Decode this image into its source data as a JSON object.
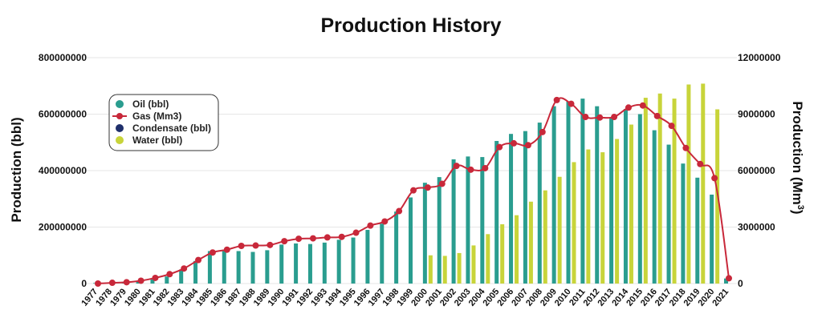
{
  "chart_data": {
    "type": "bar",
    "title": "Production History",
    "ylabel_left": "Production (bbl)",
    "ylabel_right_main": "Production (Mm",
    "ylabel_right_sup": "3",
    "ylabel_right_close": ")",
    "ylim_left": [
      0,
      800000000
    ],
    "ylim_right": [
      0,
      12000000
    ],
    "yticks_left": [
      "0",
      "200000000",
      "400000000",
      "600000000",
      "800000000"
    ],
    "yticks_right": [
      "0",
      "3000000",
      "6000000",
      "9000000",
      "12000000"
    ],
    "grid": true,
    "legend_position": "left",
    "categories": [
      "1977",
      "1978",
      "1979",
      "1980",
      "1981",
      "1982",
      "1983",
      "1984",
      "1985",
      "1986",
      "1987",
      "1988",
      "1989",
      "1990",
      "1991",
      "1992",
      "1993",
      "1994",
      "1995",
      "1996",
      "1997",
      "1998",
      "1999",
      "2000",
      "2001",
      "2002",
      "2003",
      "2004",
      "2005",
      "2006",
      "2007",
      "2008",
      "2009",
      "2010",
      "2011",
      "2012",
      "2013",
      "2014",
      "2015",
      "2016",
      "2017",
      "2018",
      "2019",
      "2020",
      "2021"
    ],
    "series": [
      {
        "name": "Oil (bbl)",
        "type": "bar",
        "axis": "left",
        "color": "#2a9d8f",
        "values": [
          2000000,
          4000000,
          6000000,
          10000000,
          15000000,
          25000000,
          50000000,
          80000000,
          115000000,
          120000000,
          115000000,
          112000000,
          118000000,
          138000000,
          142000000,
          140000000,
          145000000,
          155000000,
          163000000,
          190000000,
          212000000,
          255000000,
          305000000,
          357000000,
          377000000,
          440000000,
          450000000,
          448000000,
          505000000,
          530000000,
          540000000,
          570000000,
          628000000,
          645000000,
          655000000,
          628000000,
          590000000,
          618000000,
          600000000,
          543000000,
          492000000,
          425000000,
          375000000,
          315000000,
          18000000
        ]
      },
      {
        "name": "Gas (Mm3)",
        "type": "line",
        "axis": "right",
        "color": "#c8283a",
        "values": [
          0,
          40000,
          70000,
          150000,
          300000,
          500000,
          800000,
          1250000,
          1650000,
          1800000,
          2000000,
          2020000,
          2050000,
          2250000,
          2380000,
          2400000,
          2450000,
          2480000,
          2700000,
          3080000,
          3300000,
          3850000,
          4950000,
          5100000,
          5300000,
          6250000,
          6050000,
          6130000,
          7250000,
          7450000,
          7350000,
          8050000,
          9750000,
          9550000,
          8850000,
          8820000,
          8850000,
          9350000,
          9460000,
          8900000,
          8380000,
          7200000,
          6350000,
          5600000,
          280000
        ]
      },
      {
        "name": "Condensate (bbl)",
        "type": "bar",
        "axis": "left",
        "color": "#1f2f6b",
        "values": [
          0,
          0,
          0,
          0,
          0,
          0,
          0,
          0,
          0,
          0,
          0,
          0,
          0,
          0,
          0,
          0,
          0,
          0,
          0,
          0,
          0,
          0,
          0,
          0,
          0,
          0,
          0,
          0,
          0,
          0,
          0,
          0,
          0,
          0,
          0,
          0,
          0,
          0,
          0,
          0,
          0,
          0,
          0,
          0,
          0
        ]
      },
      {
        "name": "Water (bbl)",
        "type": "bar",
        "axis": "left",
        "color": "#c8d43a",
        "values": [
          0,
          0,
          0,
          0,
          0,
          0,
          0,
          0,
          0,
          0,
          0,
          0,
          0,
          0,
          0,
          0,
          0,
          0,
          0,
          0,
          0,
          0,
          0,
          100000000,
          98000000,
          108000000,
          135000000,
          175000000,
          210000000,
          242000000,
          290000000,
          330000000,
          378000000,
          430000000,
          475000000,
          465000000,
          512000000,
          563000000,
          658000000,
          673000000,
          655000000,
          705000000,
          708000000,
          617000000,
          0
        ]
      }
    ]
  }
}
